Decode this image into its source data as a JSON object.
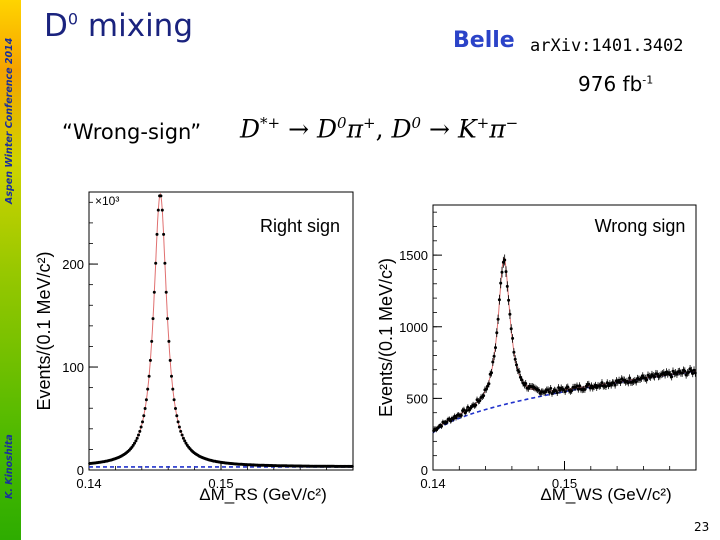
{
  "sidebar": {
    "conference": "Aspen Winter Conference 2014",
    "author": "K. Kinoshita"
  },
  "header": {
    "title_base": "D",
    "title_sup": "0",
    "title_rest": " mixing",
    "belle_logo": "Belle",
    "arxiv": "arXiv:1401.3402",
    "lumi_base": "976 fb",
    "lumi_sup": "-1"
  },
  "subtitle": {
    "quote": "“Wrong-sign”",
    "decay": {
      "p1": "D",
      "p1_sup": "*+",
      "arrow1": "→",
      "p2": "D",
      "p2_sup": "0",
      "p3": "π",
      "p3_sup": "+",
      "sep": ", ",
      "p4": "D",
      "p4_sup": "0",
      "arrow2": "→",
      "p5": "K",
      "p5_sup": "+",
      "p6": "π",
      "p6_sup": "−"
    }
  },
  "colors": {
    "fit_line": "#e07070",
    "background_fit": "#2233cc",
    "data_point": "#000000"
  },
  "chart_data": [
    {
      "type": "scatter",
      "title": "Right sign",
      "xlabel": "ΔM_RS (GeV/c²)",
      "ylabel": "Events/(0.1 MeV/c²)",
      "y_multiplier": "×10³",
      "xlim": [
        0.14,
        0.16
      ],
      "ylim": [
        0,
        270
      ],
      "x_ticks": [
        0.14,
        0.15
      ],
      "x_tick_labels": [
        "0.14",
        "0.15"
      ],
      "y_ticks": [
        0,
        100,
        200
      ],
      "y_tick_labels": [
        "0",
        "100",
        "200"
      ],
      "signal": {
        "peak_x": 0.1454,
        "peak_y": 265,
        "width": 0.0006
      },
      "background": {
        "type": "threshold",
        "scale": 3
      }
    },
    {
      "type": "scatter",
      "title": "Wrong sign",
      "xlabel": "ΔM_WS (GeV/c²)",
      "ylabel": "Events/(0.1 MeV/c²)",
      "xlim": [
        0.14,
        0.16
      ],
      "ylim": [
        0,
        1850
      ],
      "x_ticks": [
        0.14,
        0.15
      ],
      "x_tick_labels": [
        "0.14",
        "0.15"
      ],
      "y_ticks": [
        0,
        500,
        1000,
        1500
      ],
      "y_tick_labels": [
        "0",
        "500",
        "1000",
        "1500"
      ],
      "signal": {
        "peak_x": 0.1454,
        "peak_y": 1020,
        "width": 0.00055
      },
      "background": {
        "type": "threshold",
        "a": 450,
        "exp": 0.5,
        "base": 190
      }
    }
  ],
  "page_number": "23"
}
